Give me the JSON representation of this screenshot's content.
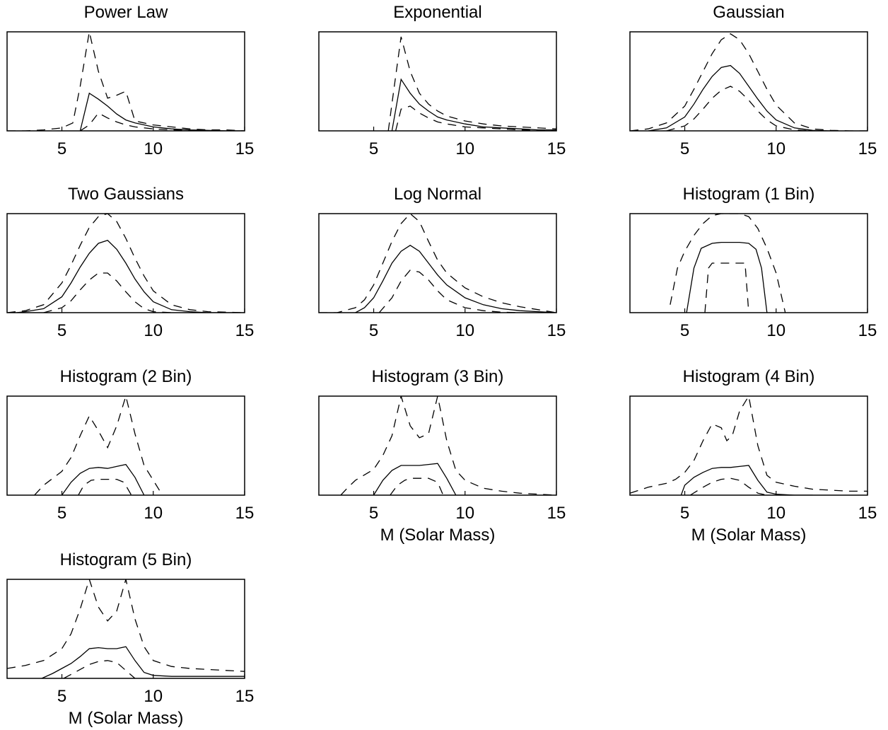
{
  "figure": {
    "xlim": [
      2,
      15
    ],
    "xticks": [
      "5",
      "10",
      "15"
    ],
    "xlabel": "M (Solar Mass)"
  },
  "chart_data": [
    {
      "type": "line",
      "title": "Power Law",
      "xlabel": "",
      "xlim": [
        2,
        15
      ],
      "ylim": [
        0,
        1
      ],
      "series": [
        {
          "style": "dashed",
          "x": [
            2,
            3,
            4,
            5,
            5.6,
            6,
            6.5,
            7,
            7.5,
            8,
            8.5,
            9,
            10,
            11,
            12,
            13,
            14,
            15
          ],
          "y": [
            0,
            0,
            0.01,
            0.03,
            0.08,
            0.45,
            1.0,
            0.6,
            0.33,
            0.36,
            0.4,
            0.1,
            0.06,
            0.04,
            0.02,
            0.01,
            0.01,
            0
          ]
        },
        {
          "style": "solid",
          "x": [
            6,
            6.5,
            7,
            7.5,
            8,
            8.5,
            9,
            10,
            11,
            12,
            13,
            14,
            15
          ],
          "y": [
            0,
            0.38,
            0.32,
            0.25,
            0.17,
            0.11,
            0.08,
            0.04,
            0.02,
            0.01,
            0.005,
            0,
            0
          ]
        },
        {
          "style": "dashed",
          "x": [
            6,
            6.5,
            7,
            7.5,
            8,
            8.5,
            9,
            10,
            11,
            12,
            13,
            14,
            15
          ],
          "y": [
            0,
            0.06,
            0.18,
            0.13,
            0.09,
            0.06,
            0.04,
            0.02,
            0.01,
            0.005,
            0,
            0,
            0
          ]
        }
      ]
    },
    {
      "type": "line",
      "title": "Exponential",
      "xlabel": "",
      "xlim": [
        2,
        15
      ],
      "ylim": [
        0,
        1
      ],
      "series": [
        {
          "style": "dashed",
          "x": [
            5.8,
            6.2,
            6.5,
            7,
            7.5,
            8,
            8.5,
            9,
            10,
            11,
            12,
            13,
            14,
            15
          ],
          "y": [
            0,
            0.55,
            0.95,
            0.6,
            0.38,
            0.27,
            0.2,
            0.15,
            0.1,
            0.07,
            0.05,
            0.04,
            0.03,
            0.02
          ]
        },
        {
          "style": "solid",
          "x": [
            6,
            6.5,
            7,
            7.5,
            8,
            8.5,
            9,
            10,
            11,
            12,
            13,
            14,
            15
          ],
          "y": [
            0,
            0.52,
            0.38,
            0.27,
            0.2,
            0.14,
            0.11,
            0.07,
            0.04,
            0.03,
            0.02,
            0.01,
            0.01
          ]
        },
        {
          "style": "dashed",
          "x": [
            6.2,
            6.5,
            7,
            7.5,
            8,
            8.5,
            9,
            10,
            11,
            12,
            13,
            14,
            15
          ],
          "y": [
            0,
            0.22,
            0.25,
            0.18,
            0.13,
            0.09,
            0.07,
            0.04,
            0.03,
            0.02,
            0.01,
            0.005,
            0
          ]
        }
      ]
    },
    {
      "type": "line",
      "title": "Gaussian",
      "xlabel": "",
      "xlim": [
        2,
        15
      ],
      "ylim": [
        0,
        1
      ],
      "series": [
        {
          "style": "dashed",
          "x": [
            2,
            3,
            4,
            5,
            5.5,
            6,
            6.5,
            7,
            7.5,
            8,
            8.5,
            9,
            9.5,
            10,
            11,
            12,
            13,
            14,
            15
          ],
          "y": [
            0,
            0.02,
            0.08,
            0.25,
            0.42,
            0.6,
            0.78,
            0.92,
            0.98,
            0.92,
            0.78,
            0.6,
            0.42,
            0.26,
            0.08,
            0.02,
            0.005,
            0,
            0
          ]
        },
        {
          "style": "solid",
          "x": [
            3,
            4,
            5,
            5.5,
            6,
            6.5,
            7,
            7.5,
            8,
            8.5,
            9,
            9.5,
            10,
            11,
            12,
            13
          ],
          "y": [
            0,
            0.03,
            0.14,
            0.27,
            0.42,
            0.55,
            0.64,
            0.66,
            0.58,
            0.45,
            0.32,
            0.2,
            0.11,
            0.03,
            0.005,
            0
          ]
        },
        {
          "style": "dashed",
          "x": [
            4,
            5,
            5.5,
            6,
            6.5,
            7,
            7.5,
            8,
            8.5,
            9,
            9.5,
            10,
            11,
            12
          ],
          "y": [
            0,
            0.05,
            0.12,
            0.22,
            0.33,
            0.41,
            0.45,
            0.4,
            0.31,
            0.2,
            0.11,
            0.05,
            0.01,
            0
          ]
        }
      ]
    },
    {
      "type": "line",
      "title": "Two Gaussians",
      "xlabel": "",
      "xlim": [
        2,
        15
      ],
      "ylim": [
        0,
        1
      ],
      "series": [
        {
          "style": "dashed",
          "x": [
            2,
            3,
            4,
            5,
            5.5,
            6,
            6.5,
            7,
            7.5,
            8,
            8.5,
            9,
            9.5,
            10,
            11,
            12,
            13,
            14,
            15
          ],
          "y": [
            0,
            0.02,
            0.08,
            0.3,
            0.48,
            0.68,
            0.86,
            0.97,
            1.0,
            0.92,
            0.75,
            0.55,
            0.37,
            0.22,
            0.08,
            0.03,
            0.01,
            0.005,
            0
          ]
        },
        {
          "style": "solid",
          "x": [
            2.5,
            3,
            4,
            5,
            5.5,
            6,
            6.5,
            7,
            7.5,
            8,
            8.5,
            9,
            9.5,
            10,
            11,
            12,
            13,
            14,
            15
          ],
          "y": [
            0,
            0.01,
            0.04,
            0.16,
            0.3,
            0.46,
            0.6,
            0.7,
            0.73,
            0.64,
            0.5,
            0.34,
            0.21,
            0.11,
            0.03,
            0.01,
            0,
            0,
            0
          ]
        },
        {
          "style": "dashed",
          "x": [
            4,
            5,
            5.5,
            6,
            6.5,
            7,
            7.5,
            8,
            8.5,
            9,
            9.5,
            10,
            11
          ],
          "y": [
            0,
            0.05,
            0.12,
            0.23,
            0.33,
            0.4,
            0.4,
            0.32,
            0.21,
            0.11,
            0.04,
            0.01,
            0
          ]
        }
      ]
    },
    {
      "type": "line",
      "title": "Log Normal",
      "xlabel": "",
      "xlim": [
        2,
        15
      ],
      "ylim": [
        0,
        1
      ],
      "series": [
        {
          "style": "dashed",
          "x": [
            2,
            3,
            4,
            4.5,
            5,
            5.5,
            6,
            6.5,
            7,
            7.5,
            8,
            8.5,
            9,
            10,
            11,
            12,
            13,
            14,
            15
          ],
          "y": [
            0,
            0,
            0.05,
            0.13,
            0.28,
            0.5,
            0.72,
            0.9,
            1.0,
            0.92,
            0.72,
            0.53,
            0.4,
            0.25,
            0.16,
            0.1,
            0.06,
            0.03,
            0
          ]
        },
        {
          "style": "solid",
          "x": [
            4,
            4.5,
            5,
            5.5,
            6,
            6.5,
            7,
            7.5,
            8,
            8.5,
            9,
            10,
            11,
            12,
            13,
            14,
            15
          ],
          "y": [
            0,
            0.05,
            0.15,
            0.32,
            0.5,
            0.62,
            0.68,
            0.62,
            0.5,
            0.38,
            0.28,
            0.15,
            0.08,
            0.04,
            0.02,
            0.01,
            0
          ]
        },
        {
          "style": "dashed",
          "x": [
            5.3,
            6,
            6.5,
            7,
            7.5,
            8,
            8.5,
            9,
            10,
            11,
            12,
            13
          ],
          "y": [
            0,
            0.15,
            0.32,
            0.43,
            0.41,
            0.33,
            0.22,
            0.13,
            0.05,
            0.02,
            0.005,
            0
          ]
        }
      ]
    },
    {
      "type": "line",
      "title": "Histogram (1 Bin)",
      "xlabel": "",
      "xlim": [
        2,
        15
      ],
      "ylim": [
        0,
        1
      ],
      "series": [
        {
          "style": "dashed",
          "x": [
            4.2,
            4.6,
            5,
            5.5,
            6,
            6.5,
            7,
            7.5,
            8,
            8.5,
            9,
            9.5,
            10,
            10.5
          ],
          "y": [
            0.08,
            0.45,
            0.62,
            0.78,
            0.9,
            0.98,
            1.0,
            1.0,
            1.0,
            0.97,
            0.85,
            0.65,
            0.4,
            0
          ]
        },
        {
          "style": "solid",
          "x": [
            5.1,
            5.5,
            5.9,
            6.5,
            7,
            7.5,
            8,
            8.5,
            8.9,
            9.2,
            9.5
          ],
          "y": [
            0,
            0.45,
            0.65,
            0.7,
            0.71,
            0.71,
            0.71,
            0.7,
            0.64,
            0.45,
            0
          ]
        },
        {
          "style": "dashed",
          "x": [
            6.1,
            6.3,
            6.5,
            7,
            7.5,
            8,
            8.3,
            8.5
          ],
          "y": [
            0,
            0.45,
            0.5,
            0.5,
            0.5,
            0.5,
            0.5,
            0
          ]
        }
      ]
    },
    {
      "type": "line",
      "title": "Histogram (2 Bin)",
      "xlabel": "",
      "xlim": [
        2,
        15
      ],
      "ylim": [
        0,
        1
      ],
      "series": [
        {
          "style": "dashed",
          "x": [
            3.5,
            4,
            5,
            5.5,
            6,
            6.5,
            7,
            7.5,
            8,
            8.5,
            9,
            9.5,
            10,
            10.5
          ],
          "y": [
            0,
            0.1,
            0.24,
            0.38,
            0.6,
            0.8,
            0.65,
            0.48,
            0.7,
            1.0,
            0.62,
            0.3,
            0.15,
            0
          ]
        },
        {
          "style": "solid",
          "x": [
            5,
            5.5,
            6,
            6.5,
            7,
            7.5,
            8,
            8.5,
            9,
            9.5
          ],
          "y": [
            0,
            0.13,
            0.22,
            0.27,
            0.28,
            0.27,
            0.29,
            0.31,
            0.18,
            0
          ]
        },
        {
          "style": "dashed",
          "x": [
            5.9,
            6.2,
            6.6,
            7,
            7.5,
            8,
            8.4,
            8.8
          ],
          "y": [
            0,
            0.1,
            0.15,
            0.16,
            0.16,
            0.16,
            0.13,
            0
          ]
        }
      ]
    },
    {
      "type": "line",
      "title": "Histogram (3 Bin)",
      "xlabel": "M (Solar Mass)",
      "xlim": [
        2,
        15
      ],
      "ylim": [
        0,
        1
      ],
      "series": [
        {
          "style": "dashed",
          "x": [
            3.2,
            3.6,
            4,
            5,
            5.5,
            6,
            6.5,
            7,
            7.5,
            8,
            8.5,
            9,
            9.5,
            10,
            11,
            12,
            13,
            14,
            15
          ],
          "y": [
            0,
            0.08,
            0.15,
            0.26,
            0.4,
            0.6,
            1.0,
            0.7,
            0.58,
            0.62,
            1.0,
            0.55,
            0.25,
            0.15,
            0.07,
            0.04,
            0.02,
            0.01,
            0
          ]
        },
        {
          "style": "solid",
          "x": [
            5,
            5.5,
            6,
            6.5,
            7,
            7.5,
            8,
            8.5,
            9,
            9.5
          ],
          "y": [
            0,
            0.15,
            0.25,
            0.3,
            0.3,
            0.3,
            0.31,
            0.32,
            0.17,
            0
          ]
        },
        {
          "style": "dashed",
          "x": [
            5.9,
            6.3,
            6.7,
            7,
            7.5,
            8,
            8.5,
            8.8
          ],
          "y": [
            0,
            0.1,
            0.15,
            0.17,
            0.17,
            0.17,
            0.13,
            0
          ]
        }
      ]
    },
    {
      "type": "line",
      "title": "Histogram (4 Bin)",
      "xlabel": "M (Solar Mass)",
      "xlim": [
        2,
        15
      ],
      "ylim": [
        0,
        1
      ],
      "series": [
        {
          "style": "dashed",
          "x": [
            2,
            3,
            4,
            4.5,
            5,
            5.5,
            6,
            6.5,
            7,
            7.3,
            7.6,
            8,
            8.5,
            9,
            9.5,
            10,
            11,
            12,
            13,
            14,
            15
          ],
          "y": [
            0.02,
            0.08,
            0.12,
            0.16,
            0.23,
            0.35,
            0.55,
            0.72,
            0.68,
            0.55,
            0.6,
            0.85,
            1.0,
            0.5,
            0.2,
            0.13,
            0.09,
            0.06,
            0.05,
            0.04,
            0.04
          ]
        },
        {
          "style": "solid",
          "x": [
            4.8,
            5,
            5.5,
            6,
            6.5,
            7,
            7.5,
            8,
            8.5,
            9,
            9.5,
            10,
            11,
            12
          ],
          "y": [
            0,
            0.1,
            0.18,
            0.23,
            0.27,
            0.28,
            0.28,
            0.29,
            0.3,
            0.15,
            0.03,
            0.01,
            0,
            0
          ]
        },
        {
          "style": "dashed",
          "x": [
            5.3,
            6,
            6.5,
            7,
            7.5,
            8,
            8.5,
            9,
            9.5
          ],
          "y": [
            0,
            0.08,
            0.13,
            0.16,
            0.17,
            0.15,
            0.08,
            0.02,
            0
          ]
        }
      ]
    },
    {
      "type": "line",
      "title": "Histogram (5 Bin)",
      "xlabel": "M (Solar Mass)",
      "xlim": [
        2,
        15
      ],
      "ylim": [
        0,
        1
      ],
      "series": [
        {
          "style": "dashed",
          "x": [
            2,
            3,
            4,
            5,
            5.5,
            6,
            6.5,
            7,
            7.5,
            8,
            8.5,
            9,
            9.5,
            10,
            11,
            12,
            13,
            14,
            15
          ],
          "y": [
            0.1,
            0.13,
            0.18,
            0.3,
            0.45,
            0.7,
            1.0,
            0.72,
            0.58,
            0.68,
            1.0,
            0.6,
            0.32,
            0.18,
            0.12,
            0.1,
            0.09,
            0.08,
            0.07
          ]
        },
        {
          "style": "solid",
          "x": [
            3.9,
            4.5,
            5,
            5.5,
            6,
            6.5,
            7,
            7.5,
            8,
            8.5,
            9,
            9.5,
            10,
            11,
            12,
            13,
            14,
            15
          ],
          "y": [
            0,
            0.05,
            0.1,
            0.15,
            0.22,
            0.3,
            0.31,
            0.3,
            0.3,
            0.32,
            0.18,
            0.06,
            0.03,
            0.02,
            0.02,
            0.02,
            0.02,
            0.02
          ]
        },
        {
          "style": "dashed",
          "x": [
            5.1,
            5.5,
            6,
            6.5,
            7,
            7.5,
            8,
            8.5,
            9
          ],
          "y": [
            0,
            0.04,
            0.09,
            0.14,
            0.17,
            0.18,
            0.16,
            0.08,
            0
          ]
        }
      ]
    }
  ]
}
